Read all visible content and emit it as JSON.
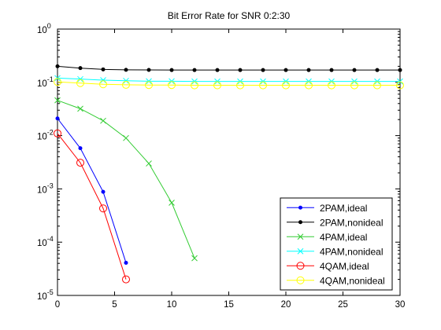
{
  "chart_data": {
    "type": "line",
    "title": "Bit Error Rate for SNR 0:2:30",
    "xlabel": "",
    "ylabel": "",
    "xlim": [
      0,
      30
    ],
    "ylim": [
      1e-05,
      1
    ],
    "yscale": "log",
    "grid": false,
    "legend_position": "bottom-right",
    "x_ticks": [
      0,
      5,
      10,
      15,
      20,
      25,
      30
    ],
    "x_tick_labels": [
      "0",
      "5",
      "10",
      "15",
      "20",
      "25",
      "30"
    ],
    "y_ticks": [
      1e-05,
      0.0001,
      0.001,
      0.01,
      0.1,
      1
    ],
    "y_tick_labels": [
      {
        "base": "10",
        "exp": "-5"
      },
      {
        "base": "10",
        "exp": "-4"
      },
      {
        "base": "10",
        "exp": "-3"
      },
      {
        "base": "10",
        "exp": "-2"
      },
      {
        "base": "10",
        "exp": "-1"
      },
      {
        "base": "10",
        "exp": "0"
      }
    ],
    "series": [
      {
        "name": "2PAM,ideal",
        "color": "#0000ff",
        "marker": "dot",
        "x": [
          0,
          2,
          4,
          6
        ],
        "y": [
          0.021,
          0.0058,
          0.00088,
          4.1e-05
        ]
      },
      {
        "name": "2PAM,nonideal",
        "color": "#000000",
        "marker": "dot",
        "x": [
          0,
          2,
          4,
          6,
          8,
          10,
          12,
          14,
          16,
          18,
          20,
          22,
          24,
          26,
          28,
          30
        ],
        "y": [
          0.2,
          0.185,
          0.175,
          0.172,
          0.171,
          0.17,
          0.17,
          0.17,
          0.17,
          0.17,
          0.17,
          0.17,
          0.17,
          0.17,
          0.17,
          0.17
        ]
      },
      {
        "name": "4PAM,ideal",
        "color": "#33cc33",
        "marker": "x",
        "x": [
          0,
          2,
          4,
          6,
          8,
          10,
          12
        ],
        "y": [
          0.046,
          0.032,
          0.019,
          0.009,
          0.003,
          0.00055,
          5e-05
        ]
      },
      {
        "name": "4PAM,nonideal",
        "color": "#00ffff",
        "marker": "x",
        "x": [
          0,
          2,
          4,
          6,
          8,
          10,
          12,
          14,
          16,
          18,
          20,
          22,
          24,
          26,
          28,
          30
        ],
        "y": [
          0.12,
          0.115,
          0.11,
          0.107,
          0.105,
          0.105,
          0.104,
          0.104,
          0.104,
          0.104,
          0.104,
          0.104,
          0.104,
          0.104,
          0.104,
          0.104
        ]
      },
      {
        "name": "4QAM,ideal",
        "color": "#ff0000",
        "marker": "circle",
        "x": [
          0,
          2,
          4,
          6
        ],
        "y": [
          0.011,
          0.0031,
          0.00043,
          2e-05
        ]
      },
      {
        "name": "4QAM,nonideal",
        "color": "#ffff00",
        "marker": "circle",
        "x": [
          0,
          2,
          4,
          6,
          8,
          10,
          12,
          14,
          16,
          18,
          20,
          22,
          24,
          26,
          28,
          30
        ],
        "y": [
          0.102,
          0.097,
          0.092,
          0.09,
          0.089,
          0.089,
          0.088,
          0.088,
          0.088,
          0.088,
          0.088,
          0.088,
          0.088,
          0.088,
          0.088,
          0.088
        ]
      }
    ]
  }
}
